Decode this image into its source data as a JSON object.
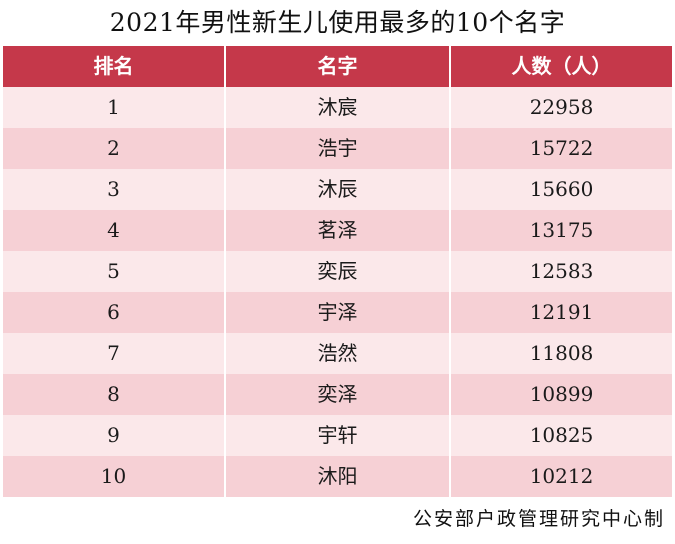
{
  "title": "2021年男性新生儿使用最多的10个名字",
  "table": {
    "headers": [
      "排名",
      "名字",
      "人数（人）"
    ],
    "rows": [
      {
        "rank": "1",
        "name": "沐宸",
        "count": "22958"
      },
      {
        "rank": "2",
        "name": "浩宇",
        "count": "15722"
      },
      {
        "rank": "3",
        "name": "沐辰",
        "count": "15660"
      },
      {
        "rank": "4",
        "name": "茗泽",
        "count": "13175"
      },
      {
        "rank": "5",
        "name": "奕辰",
        "count": "12583"
      },
      {
        "rank": "6",
        "name": "宇泽",
        "count": "12191"
      },
      {
        "rank": "7",
        "name": "浩然",
        "count": "11808"
      },
      {
        "rank": "8",
        "name": "奕泽",
        "count": "10899"
      },
      {
        "rank": "9",
        "name": "宇轩",
        "count": "10825"
      },
      {
        "rank": "10",
        "name": "沐阳",
        "count": "10212"
      }
    ]
  },
  "credit": "公安部户政管理研究中心制",
  "colors": {
    "header_bg": "#c5384a",
    "row_light": "#fbe8ea",
    "row_dark": "#f6d0d5"
  }
}
